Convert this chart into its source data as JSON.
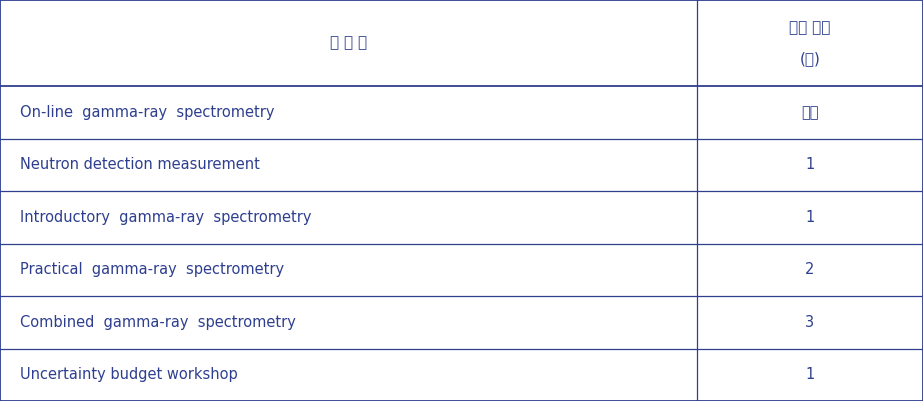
{
  "header_col1": "과 정 명",
  "header_col2_line1": "교육 기간",
  "header_col2_line2": "(일)",
  "rows": [
    [
      "On-line  gamma-ray  spectrometry",
      "수시"
    ],
    [
      "Neutron detection measurement",
      "1"
    ],
    [
      "Introductory  gamma-ray  spectrometry",
      "1"
    ],
    [
      "Practical  gamma-ray  spectrometry",
      "2"
    ],
    [
      "Combined  gamma-ray  spectrometry",
      "3"
    ],
    [
      "Uncertainty budget workshop",
      "1"
    ]
  ],
  "col_split": 0.755,
  "text_color": "#2e3f8f",
  "border_color": "#2e3f8f",
  "background_color": "#ffffff",
  "header_fontsize": 11,
  "cell_fontsize": 10.5,
  "fig_width": 9.23,
  "fig_height": 4.01,
  "dpi": 100
}
